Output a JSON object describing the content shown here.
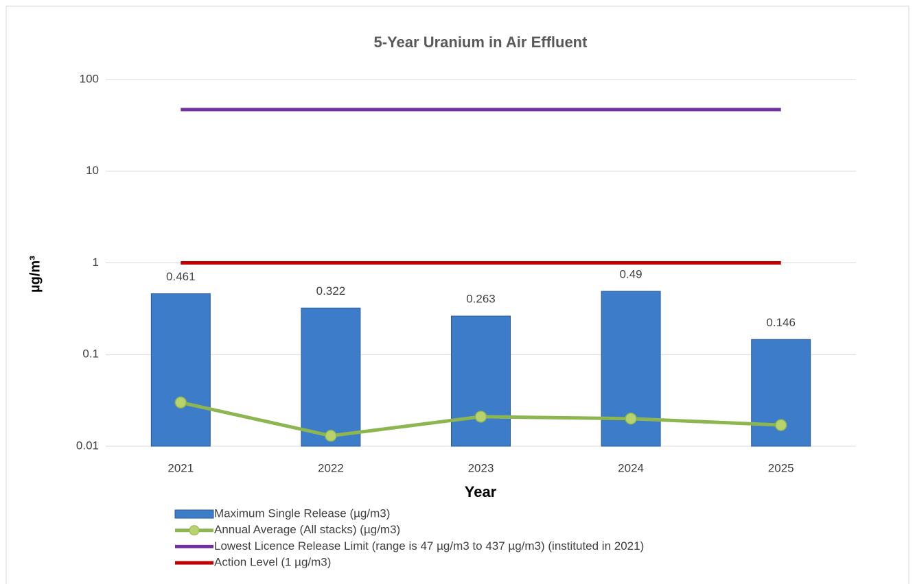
{
  "chart_data": {
    "type": "bar",
    "title": "5-Year Uranium in Air Effluent",
    "x_label": "Year",
    "y_label": "µg/m³",
    "categories": [
      "2021",
      "2022",
      "2023",
      "2024",
      "2025"
    ],
    "series": [
      {
        "name": "Maximum Single Release (µg/m3)",
        "type": "bar",
        "color": "#3d7cc9",
        "values": [
          0.461,
          0.322,
          0.263,
          0.49,
          0.146
        ],
        "data_labels": true
      },
      {
        "name": "Annual Average (All stacks) (µg/m3)",
        "type": "line",
        "color": "#8db550",
        "marker_color": "#b8d36e",
        "values": [
          0.03,
          0.013,
          0.021,
          0.02,
          0.017
        ]
      },
      {
        "name": "Lowest Licence Release Limit (range is 47 µg/m3 to 437 µg/m3) (instituted in 2021)",
        "type": "line",
        "color": "#7030a0",
        "values": [
          47,
          47,
          47,
          47,
          47
        ]
      },
      {
        "name": "Action Level  (1 µg/m3)",
        "type": "line",
        "color": "#c00000",
        "values": [
          1,
          1,
          1,
          1,
          1
        ]
      }
    ],
    "log_y": true,
    "ylim": [
      0.01,
      100
    ],
    "yticks": [
      0.01,
      0.1,
      1,
      10,
      100
    ],
    "grid": true,
    "legend": "bottom"
  }
}
